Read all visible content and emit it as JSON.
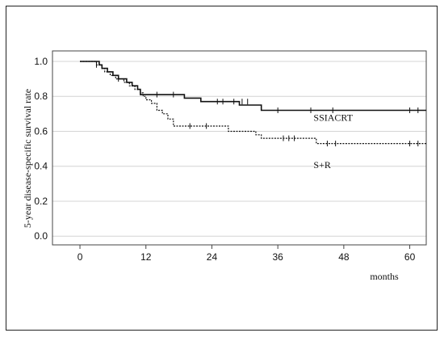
{
  "chart_data": {
    "type": "line",
    "subtype": "kaplan-meier step",
    "title": "",
    "xlabel": "months",
    "ylabel": "5-year disease-specific survival rate",
    "xlim": [
      -5,
      63
    ],
    "ylim": [
      -0.05,
      1.06
    ],
    "x_ticks": [
      0,
      12,
      24,
      36,
      48,
      60
    ],
    "y_ticks": [
      0.0,
      0.2,
      0.4,
      0.6,
      0.8,
      1.0
    ],
    "y_tick_labels": [
      "0.0",
      "0.2",
      "0.4",
      "0.6",
      "0.8",
      "1.0"
    ],
    "grid": "horizontal",
    "series": [
      {
        "name": "SSIACRT",
        "style": "solid",
        "color": "#111111",
        "steps": [
          [
            0,
            1.0
          ],
          [
            3.5,
            0.98
          ],
          [
            4,
            0.96
          ],
          [
            5,
            0.94
          ],
          [
            6,
            0.92
          ],
          [
            7,
            0.9
          ],
          [
            8.5,
            0.88
          ],
          [
            9.5,
            0.86
          ],
          [
            10.5,
            0.84
          ],
          [
            11,
            0.81
          ],
          [
            19,
            0.79
          ],
          [
            22,
            0.77
          ],
          [
            29,
            0.75
          ],
          [
            33,
            0.72
          ],
          [
            63,
            0.72
          ]
        ],
        "censored": [
          [
            14,
            0.81
          ],
          [
            17,
            0.81
          ],
          [
            25,
            0.77
          ],
          [
            26,
            0.77
          ],
          [
            28,
            0.77
          ],
          [
            29.5,
            0.77
          ],
          [
            30.5,
            0.77
          ],
          [
            36,
            0.72
          ],
          [
            42,
            0.72
          ],
          [
            46,
            0.72
          ],
          [
            60,
            0.72
          ],
          [
            61.5,
            0.72
          ]
        ]
      },
      {
        "name": "S+R",
        "style": "dashed",
        "color": "#111111",
        "steps": [
          [
            0,
            1.0
          ],
          [
            3,
            0.98
          ],
          [
            4,
            0.96
          ],
          [
            4.5,
            0.94
          ],
          [
            5.5,
            0.92
          ],
          [
            6.5,
            0.9
          ],
          [
            8,
            0.88
          ],
          [
            9,
            0.86
          ],
          [
            10,
            0.84
          ],
          [
            11,
            0.82
          ],
          [
            11.5,
            0.8
          ],
          [
            12,
            0.78
          ],
          [
            13,
            0.76
          ],
          [
            14,
            0.72
          ],
          [
            15,
            0.7
          ],
          [
            16,
            0.67
          ],
          [
            17,
            0.63
          ],
          [
            27,
            0.6
          ],
          [
            32,
            0.58
          ],
          [
            33,
            0.56
          ],
          [
            43,
            0.53
          ],
          [
            63,
            0.53
          ]
        ],
        "censored": [
          [
            3,
            0.98
          ],
          [
            7,
            0.9
          ],
          [
            20,
            0.63
          ],
          [
            23,
            0.63
          ],
          [
            37,
            0.56
          ],
          [
            38,
            0.56
          ],
          [
            39,
            0.56
          ],
          [
            45,
            0.53
          ],
          [
            46.5,
            0.53
          ],
          [
            60,
            0.53
          ],
          [
            61.5,
            0.53
          ]
        ]
      }
    ],
    "annotations": [
      {
        "text": "SSIACRT",
        "x": 42.5,
        "y": 0.66
      },
      {
        "text": "S+R",
        "x": 42.5,
        "y": 0.39
      }
    ]
  }
}
